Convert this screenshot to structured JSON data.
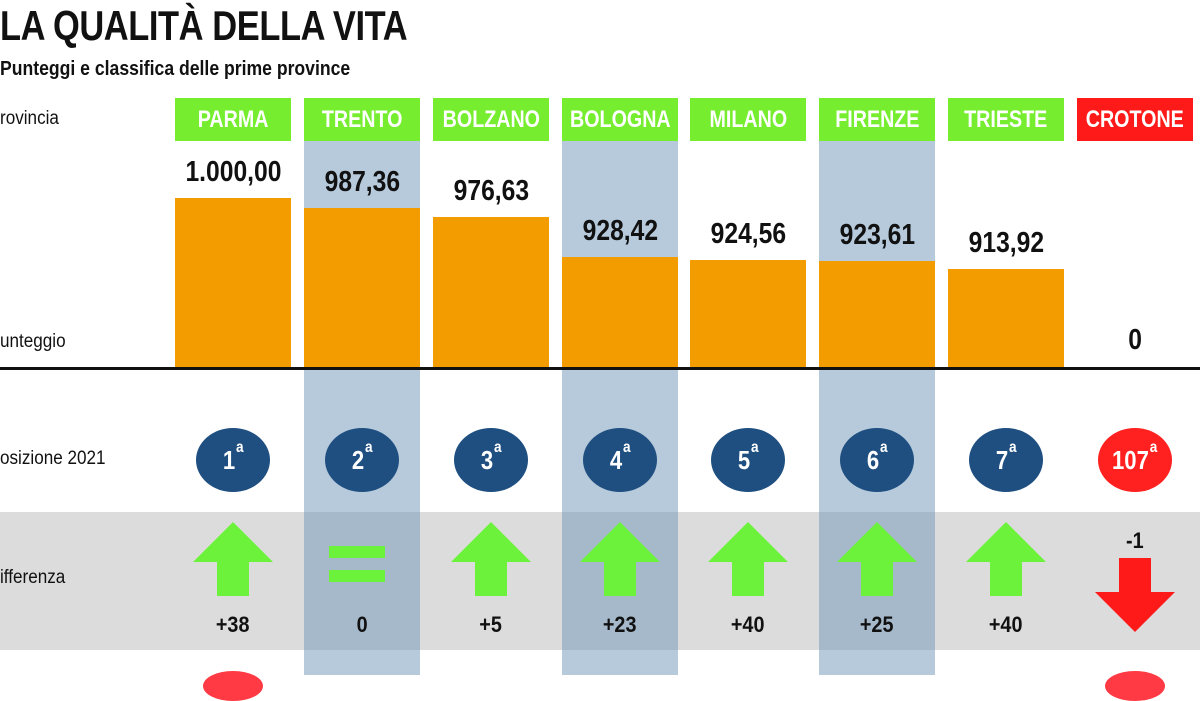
{
  "title": "LA QUALITÀ DELLA VITA",
  "subtitle": "Punteggi e classifica delle prime province",
  "row_labels": {
    "provincia": "rovincia",
    "punteggio": "unteggio",
    "posizione": "osizione 2021",
    "differenza": "ifferenza"
  },
  "colors": {
    "header_top": "#76ee2f",
    "header_bottom": "#ff1a1a",
    "bar": "#f29c00",
    "circle_top": "#1f4f80",
    "circle_bottom": "#ff2020",
    "arrow_up": "#6df23c",
    "arrow_down": "#ff1a1a"
  },
  "chart_data": {
    "type": "bar",
    "categories": [
      "PARMA",
      "TRENTO",
      "BOLZANO",
      "BOLOGNA",
      "MILANO",
      "FIRENZE",
      "TRIESTE",
      "CROTONE"
    ],
    "values": [
      1000.0,
      987.36,
      976.63,
      928.42,
      924.56,
      923.61,
      913.92,
      0
    ],
    "value_labels": [
      "1.000,00",
      "987,36",
      "976,63",
      "928,42",
      "924,56",
      "923,61",
      "913,92",
      "0"
    ],
    "ylim": [
      0,
      1000
    ],
    "positions": [
      "1",
      "2",
      "3",
      "4",
      "5",
      "6",
      "7",
      "107"
    ],
    "ordinal_suffix": "a",
    "changes": [
      38,
      0,
      5,
      23,
      40,
      25,
      40,
      -1
    ],
    "change_labels": [
      "+38",
      "0",
      "+5",
      "+23",
      "+40",
      "+25",
      "+40",
      "-1"
    ],
    "change_icons": [
      "arrow-up-icon",
      "equal-icon",
      "arrow-up-icon",
      "arrow-up-icon",
      "arrow-up-icon",
      "arrow-up-icon",
      "arrow-up-icon",
      "arrow-down-icon"
    ],
    "grid": false,
    "legend": "none"
  }
}
